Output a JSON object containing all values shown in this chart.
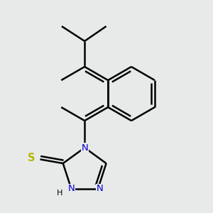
{
  "bg_color": "#e8eaea",
  "bond_color": "#000000",
  "N_color": "#0000cc",
  "S_color": "#b8b800",
  "line_width": 1.8,
  "figsize": [
    3.0,
    3.0
  ],
  "dpi": 100,
  "xlim": [
    0,
    300
  ],
  "ylim": [
    0,
    300
  ]
}
